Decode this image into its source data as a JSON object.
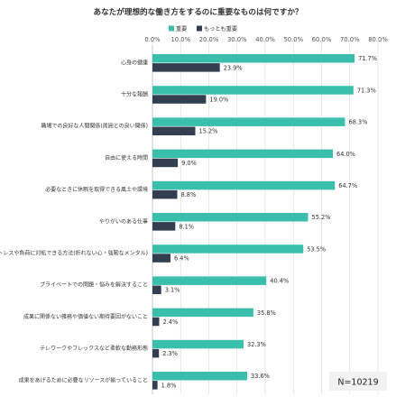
{
  "chart_data": {
    "type": "bar",
    "orientation": "horizontal",
    "title": "あなたが理想的な働き方をするのに重要なものは何ですか？",
    "legend_position": "top",
    "grid": true,
    "xlim": [
      0,
      80
    ],
    "ticks": [
      "0.0%",
      "10.0%",
      "20.0%",
      "30.0%",
      "40.0%",
      "50.0%",
      "60.0%",
      "70.0%",
      "80.0%"
    ],
    "categories": [
      "心身の健康",
      "十分な報酬",
      "職場での良好な人間関係(周囲との良い関係)",
      "自由に使える時間",
      "必要なときに休暇を取得できる風土や環境",
      "やりがいのある仕事",
      "ストレスや負荷に対処できる方法(折れない心・強靭なメンタル)",
      "プライベートでの問題・悩みを解決すること",
      "成果に関係ない雑務や価値ない期待要因がないこと",
      "テレワークやフレックスなど柔軟な勤務形態",
      "成果をあげるために必要なリソースが揃っていること"
    ],
    "series": [
      {
        "name": "重要",
        "color": "#3bbfad",
        "values": [
          71.7,
          71.3,
          68.3,
          64.0,
          64.7,
          55.2,
          53.5,
          40.4,
          35.8,
          32.3,
          33.6
        ],
        "labels": [
          "71.7%",
          "71.3%",
          "68.3%",
          "64.0%",
          "64.7%",
          "55.2%",
          "53.5%",
          "40.4%",
          "35.8%",
          "32.3%",
          "33.6%"
        ]
      },
      {
        "name": "もっとも重要",
        "color": "#333f50",
        "values": [
          23.9,
          19.0,
          15.2,
          9.0,
          8.8,
          8.1,
          6.4,
          3.1,
          2.4,
          2.3,
          1.8
        ],
        "labels": [
          "23.9%",
          "19.0%",
          "15.2%",
          "9.0%",
          "8.8%",
          "8.1%",
          "6.4%",
          "3.1%",
          "2.4%",
          "2.3%",
          "1.8%"
        ]
      }
    ],
    "annotation": "N=10219",
    "colors": {
      "grid": "#d9d9d9",
      "annotation_bg": "#f2f2f2"
    }
  }
}
